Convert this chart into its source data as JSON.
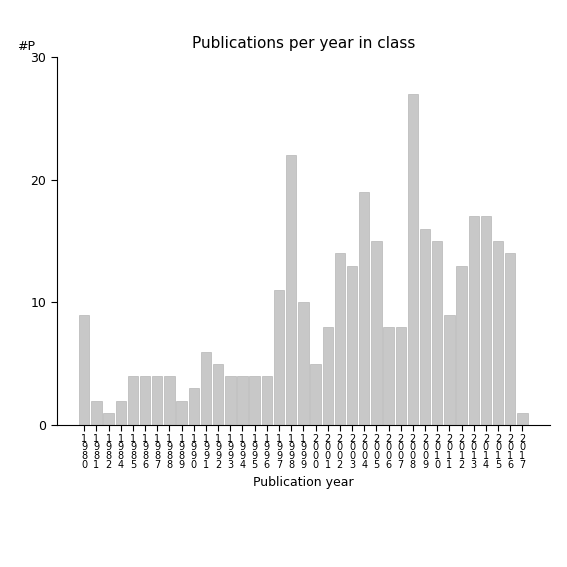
{
  "title": "Publications per year in class",
  "xlabel": "Publication year",
  "ylabel": "#P",
  "bar_color": "#c8c8c8",
  "background_color": "#ffffff",
  "ylim": [
    0,
    30
  ],
  "yticks": [
    0,
    10,
    20,
    30
  ],
  "categories": [
    "1\n9\n8\n0",
    "1\n9\n8\n1",
    "1\n9\n8\n2",
    "1\n9\n8\n4",
    "1\n9\n8\n5",
    "1\n9\n8\n6",
    "1\n9\n8\n7",
    "1\n9\n8\n8",
    "1\n9\n8\n9",
    "1\n9\n9\n0",
    "1\n9\n9\n1",
    "1\n9\n9\n2",
    "1\n9\n9\n3",
    "1\n9\n9\n4",
    "1\n9\n9\n5",
    "1\n9\n9\n6",
    "1\n9\n9\n7",
    "1\n9\n9\n8",
    "1\n9\n9\n9",
    "2\n0\n0\n0",
    "2\n0\n0\n1",
    "2\n0\n0\n2",
    "2\n0\n0\n3",
    "2\n0\n0\n4",
    "2\n0\n0\n5",
    "2\n0\n0\n6",
    "2\n0\n0\n7",
    "2\n0\n0\n8",
    "2\n0\n0\n9",
    "2\n0\n1\n0",
    "2\n0\n1\n1",
    "2\n0\n1\n2",
    "2\n0\n1\n3",
    "2\n0\n1\n4",
    "2\n0\n1\n5",
    "2\n0\n1\n6",
    "2\n0\n1\n7"
  ],
  "values": [
    9,
    2,
    1,
    2,
    4,
    4,
    4,
    4,
    2,
    3,
    6,
    5,
    4,
    4,
    4,
    4,
    11,
    22,
    10,
    5,
    8,
    14,
    13,
    19,
    15,
    8,
    8,
    27,
    16,
    15,
    9,
    13,
    17,
    17,
    15,
    14,
    1
  ],
  "title_fontsize": 11,
  "axis_fontsize": 9,
  "tick_fontsize": 7
}
